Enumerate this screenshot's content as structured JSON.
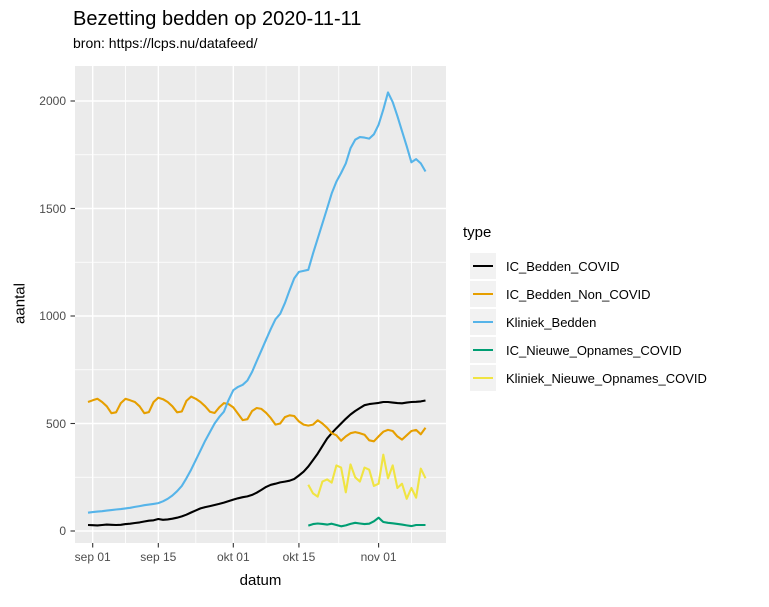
{
  "title": "Bezetting bedden op 2020-11-11",
  "subtitle": "bron: https://lcps.nu/datafeed/",
  "x_axis": {
    "title": "datum",
    "ticks": [
      {
        "label": "sep 01",
        "date": "2020-09-01"
      },
      {
        "label": "sep 15",
        "date": "2020-09-15"
      },
      {
        "label": "okt 01",
        "date": "2020-10-01"
      },
      {
        "label": "okt 15",
        "date": "2020-10-15"
      },
      {
        "label": "nov 01",
        "date": "2020-11-01"
      }
    ]
  },
  "y_axis": {
    "title": "aantal",
    "ticks": [
      0,
      500,
      1000,
      1500,
      2000
    ]
  },
  "legend": {
    "title": "type",
    "entries": [
      {
        "label": "IC_Bedden_COVID",
        "color": "#000000"
      },
      {
        "label": "IC_Bedden_Non_COVID",
        "color": "#E69F00"
      },
      {
        "label": "Kliniek_Bedden",
        "color": "#56B4E9"
      },
      {
        "label": "IC_Nieuwe_Opnames_COVID",
        "color": "#009E73"
      },
      {
        "label": "Kliniek_Nieuwe_Opnames_COVID",
        "color": "#F0E442"
      }
    ]
  },
  "colors": {
    "panel_bg": "#EBEBEB",
    "grid": "#FFFFFF",
    "tick_mark": "#333333",
    "tick_text": "#4d4d4d",
    "legend_key_bg": "#F2F2F2"
  },
  "chart_data": {
    "type": "line",
    "title": "Bezetting bedden op 2020-11-11",
    "subtitle": "bron: https://lcps.nu/datafeed/",
    "xlabel": "datum",
    "ylabel": "aantal",
    "x_range": [
      "2020-08-31",
      "2020-11-11"
    ],
    "ylim": [
      0,
      2040
    ],
    "y_major_ticks": [
      0,
      500,
      1000,
      1500,
      2000
    ],
    "x_tick_dates": [
      "2020-09-01",
      "2020-09-15",
      "2020-10-01",
      "2020-10-15",
      "2020-11-01"
    ],
    "grid": true,
    "legend_position": "right",
    "series": [
      {
        "name": "IC_Bedden_COVID",
        "color": "#000000",
        "start_date": "2020-08-31",
        "cadence": "daily",
        "values": [
          28,
          27,
          26,
          28,
          30,
          29,
          28,
          29,
          32,
          34,
          37,
          40,
          44,
          48,
          50,
          56,
          52,
          54,
          57,
          62,
          68,
          76,
          86,
          96,
          105,
          111,
          116,
          121,
          126,
          132,
          139,
          146,
          152,
          157,
          161,
          168,
          178,
          191,
          205,
          215,
          220,
          226,
          230,
          234,
          242,
          258,
          276,
          300,
          330,
          360,
          395,
          430,
          455,
          478,
          500,
          522,
          542,
          558,
          572,
          585,
          590,
          593,
          596,
          600,
          600,
          597,
          595,
          594,
          597,
          600,
          601,
          603,
          607
        ]
      },
      {
        "name": "IC_Bedden_Non_COVID",
        "color": "#E69F00",
        "start_date": "2020-08-31",
        "cadence": "daily",
        "values": [
          600,
          608,
          615,
          600,
          580,
          548,
          552,
          595,
          615,
          608,
          600,
          580,
          548,
          553,
          600,
          620,
          613,
          600,
          580,
          552,
          556,
          605,
          625,
          615,
          600,
          580,
          555,
          549,
          575,
          595,
          590,
          575,
          545,
          516,
          520,
          558,
          572,
          568,
          550,
          525,
          495,
          500,
          530,
          538,
          535,
          510,
          495,
          490,
          495,
          515,
          500,
          480,
          455,
          445,
          420,
          440,
          455,
          460,
          455,
          448,
          422,
          417,
          440,
          462,
          470,
          465,
          440,
          425,
          445,
          465,
          470,
          450,
          480
        ]
      },
      {
        "name": "Kliniek_Bedden",
        "color": "#56B4E9",
        "start_date": "2020-08-31",
        "cadence": "daily",
        "values": [
          85,
          88,
          90,
          92,
          95,
          97,
          100,
          102,
          105,
          108,
          112,
          116,
          120,
          123,
          126,
          130,
          138,
          150,
          165,
          185,
          210,
          245,
          285,
          330,
          375,
          420,
          460,
          500,
          530,
          555,
          610,
          655,
          670,
          680,
          700,
          740,
          790,
          840,
          890,
          940,
          985,
          1010,
          1060,
          1120,
          1175,
          1205,
          1210,
          1215,
          1290,
          1360,
          1430,
          1500,
          1570,
          1625,
          1665,
          1710,
          1780,
          1820,
          1832,
          1830,
          1825,
          1845,
          1890,
          1960,
          2040,
          1995,
          1930,
          1860,
          1790,
          1715,
          1730,
          1710,
          1672
        ]
      },
      {
        "name": "IC_Nieuwe_Opnames_COVID",
        "color": "#009E73",
        "start_date": "2020-10-17",
        "cadence": "daily",
        "values": [
          25,
          32,
          35,
          33,
          30,
          34,
          28,
          22,
          26,
          33,
          38,
          35,
          32,
          34,
          45,
          62,
          42,
          38,
          36,
          33,
          30,
          26,
          23,
          28,
          28,
          28
        ]
      },
      {
        "name": "Kliniek_Nieuwe_Opnames_COVID",
        "color": "#F0E442",
        "start_date": "2020-10-17",
        "cadence": "daily",
        "values": [
          215,
          175,
          160,
          230,
          240,
          225,
          305,
          295,
          180,
          310,
          250,
          230,
          295,
          285,
          210,
          220,
          355,
          245,
          305,
          200,
          220,
          150,
          200,
          155,
          290,
          245
        ]
      }
    ]
  }
}
